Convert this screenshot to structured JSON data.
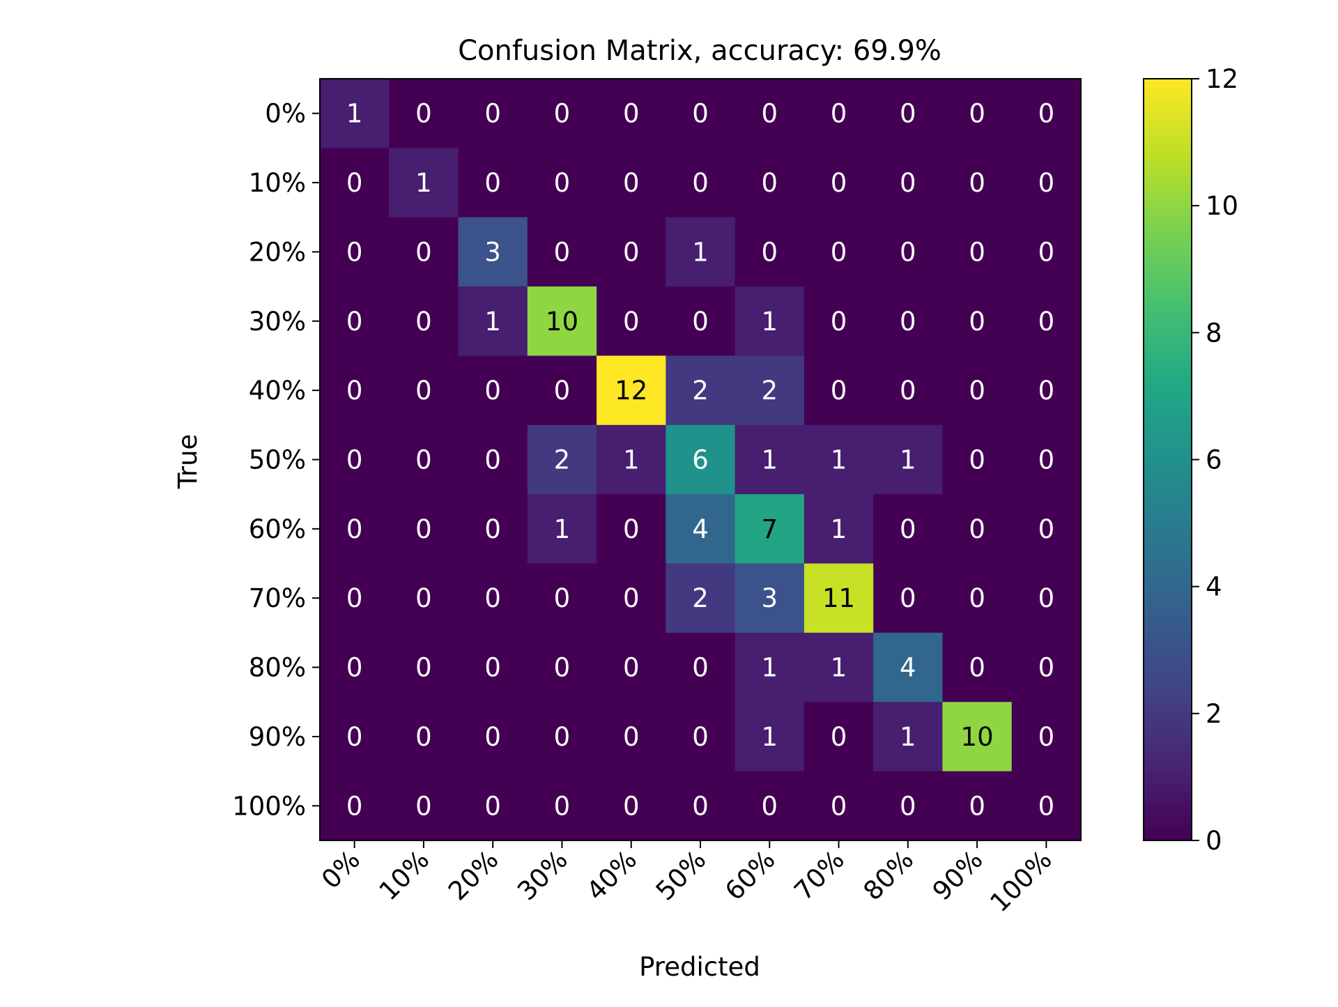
{
  "chart_data": {
    "type": "heatmap",
    "title": "Confusion Matrix, accuracy: 69.9%",
    "xlabel": "Predicted",
    "ylabel": "True",
    "x_categories": [
      "0%",
      "10%",
      "20%",
      "30%",
      "40%",
      "50%",
      "60%",
      "70%",
      "80%",
      "90%",
      "100%"
    ],
    "y_categories": [
      "0%",
      "10%",
      "20%",
      "30%",
      "40%",
      "50%",
      "60%",
      "70%",
      "80%",
      "90%",
      "100%"
    ],
    "values": [
      [
        1,
        0,
        0,
        0,
        0,
        0,
        0,
        0,
        0,
        0,
        0
      ],
      [
        0,
        1,
        0,
        0,
        0,
        0,
        0,
        0,
        0,
        0,
        0
      ],
      [
        0,
        0,
        3,
        0,
        0,
        1,
        0,
        0,
        0,
        0,
        0
      ],
      [
        0,
        0,
        1,
        10,
        0,
        0,
        1,
        0,
        0,
        0,
        0
      ],
      [
        0,
        0,
        0,
        0,
        12,
        2,
        2,
        0,
        0,
        0,
        0
      ],
      [
        0,
        0,
        0,
        2,
        1,
        6,
        1,
        1,
        1,
        0,
        0
      ],
      [
        0,
        0,
        0,
        1,
        0,
        4,
        7,
        1,
        0,
        0,
        0
      ],
      [
        0,
        0,
        0,
        0,
        0,
        2,
        3,
        11,
        0,
        0,
        0
      ],
      [
        0,
        0,
        0,
        0,
        0,
        0,
        1,
        1,
        4,
        0,
        0
      ],
      [
        0,
        0,
        0,
        0,
        0,
        0,
        1,
        0,
        1,
        10,
        0
      ],
      [
        0,
        0,
        0,
        0,
        0,
        0,
        0,
        0,
        0,
        0,
        0
      ]
    ],
    "colorscale": "viridis",
    "vmin": 0,
    "vmax": 12,
    "colorbar_ticks": [
      "0",
      "2",
      "4",
      "6",
      "8",
      "10",
      "12"
    ],
    "x_tick_rotation": "45deg",
    "grid": false
  }
}
